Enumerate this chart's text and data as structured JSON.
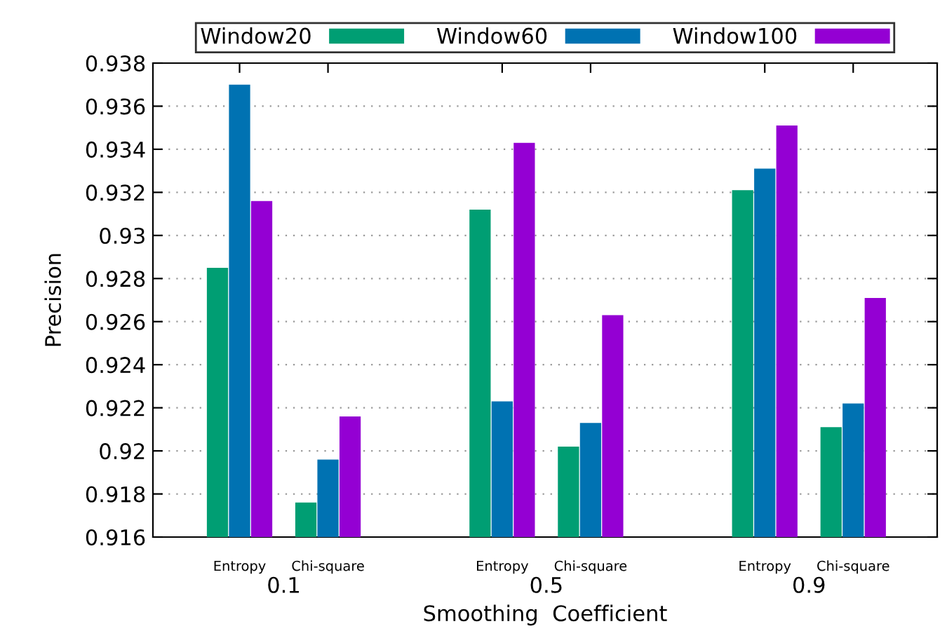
{
  "chart_data": {
    "type": "bar",
    "xlabel": "Smoothing  Coefficient",
    "ylabel": "Precision",
    "categories": [
      "Entropy",
      "Chi-square",
      "Entropy",
      "Chi-square",
      "Entropy",
      "Chi-square"
    ],
    "series": [
      {
        "name": "Window20",
        "color": "#009e73",
        "values": [
          0.9285,
          0.9176,
          0.9312,
          0.9202,
          0.9321,
          0.9211
        ]
      },
      {
        "name": "Window60",
        "color": "#0072b2",
        "values": [
          0.937,
          0.9196,
          0.9223,
          0.9213,
          0.9331,
          0.9222
        ]
      },
      {
        "name": "Window100",
        "color": "#9400d3",
        "values": [
          0.9316,
          0.9216,
          0.9343,
          0.9263,
          0.9351,
          0.9271
        ]
      }
    ],
    "annotations": [
      "0.1",
      "0.5",
      "0.9"
    ],
    "ylim": [
      0.916,
      0.938
    ],
    "yticks": [
      0.916,
      0.918,
      0.92,
      0.922,
      0.924,
      0.926,
      0.928,
      0.93,
      0.932,
      0.934,
      0.936,
      0.938
    ],
    "grid": "y",
    "legend": "top"
  }
}
